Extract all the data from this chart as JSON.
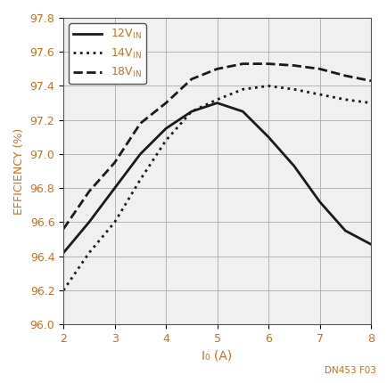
{
  "title": "",
  "xlabel": "I₀ (A)",
  "ylabel": "EFFICIENCY (%)",
  "xlim": [
    2,
    8
  ],
  "ylim": [
    96.0,
    97.8
  ],
  "xticks": [
    2,
    3,
    4,
    5,
    6,
    7,
    8
  ],
  "yticks": [
    96.0,
    96.2,
    96.4,
    96.6,
    96.8,
    97.0,
    97.2,
    97.4,
    97.6,
    97.8
  ],
  "annotation": "DN453 F03",
  "text_color": "#c87020",
  "line_color": "#1a1a1a",
  "background_color": "#f0f0f0",
  "legend_labels": [
    "12V_IN",
    "14V_IN",
    "18V_IN"
  ],
  "curves": {
    "12V": {
      "x": [
        2.0,
        2.5,
        3.0,
        3.5,
        4.0,
        4.5,
        5.0,
        5.5,
        6.0,
        6.5,
        7.0,
        7.5,
        8.0
      ],
      "y": [
        96.42,
        96.6,
        96.8,
        97.0,
        97.15,
        97.25,
        97.3,
        97.25,
        97.1,
        96.93,
        96.72,
        96.55,
        96.47
      ],
      "linestyle": "-",
      "linewidth": 2.0
    },
    "14V": {
      "x": [
        2.0,
        2.5,
        3.0,
        3.5,
        4.0,
        4.5,
        5.0,
        5.5,
        6.0,
        6.5,
        7.0,
        7.5,
        8.0
      ],
      "y": [
        96.2,
        96.42,
        96.6,
        96.85,
        97.08,
        97.25,
        97.32,
        97.38,
        97.4,
        97.38,
        97.35,
        97.32,
        97.3
      ],
      "linestyle": "dotted",
      "linewidth": 2.0
    },
    "18V": {
      "x": [
        2.0,
        2.5,
        3.0,
        3.5,
        4.0,
        4.5,
        5.0,
        5.5,
        6.0,
        6.5,
        7.0,
        7.5,
        8.0
      ],
      "y": [
        96.56,
        96.78,
        96.95,
        97.18,
        97.3,
        97.44,
        97.5,
        97.53,
        97.53,
        97.52,
        97.5,
        97.46,
        97.43
      ],
      "linestyle": "--",
      "linewidth": 2.0
    }
  }
}
